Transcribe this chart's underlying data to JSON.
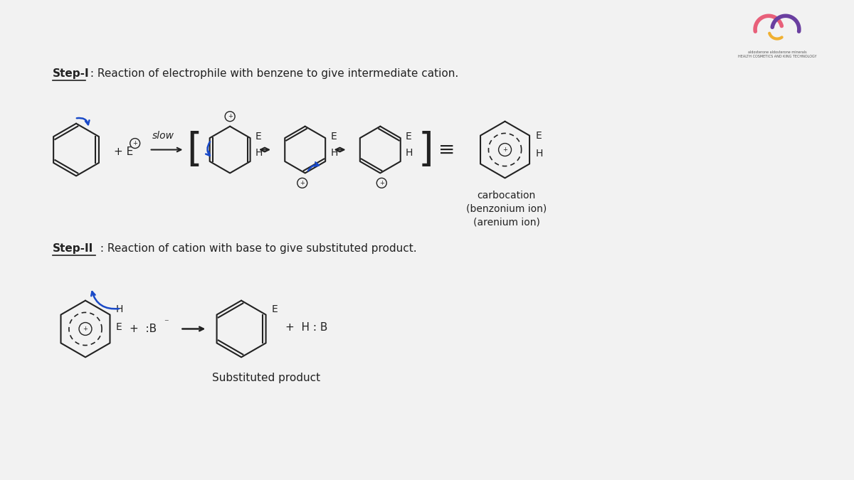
{
  "bg_color": "#f2f2f2",
  "step1_label": "Step-I",
  "step1_text": " : Reaction of electrophile with benzene to give intermediate cation.",
  "step2_label": "Step-II",
  "step2_text": " : Reaction of cation with base to give substituted product.",
  "carbocation_label": "carbocation\n(benzonium ion)\n(arenium ion)",
  "substituted_label": "Substituted product",
  "slow_text": "slow",
  "equiv_text": "≡",
  "line_color": "#222222",
  "blue_color": "#1a4ac8"
}
